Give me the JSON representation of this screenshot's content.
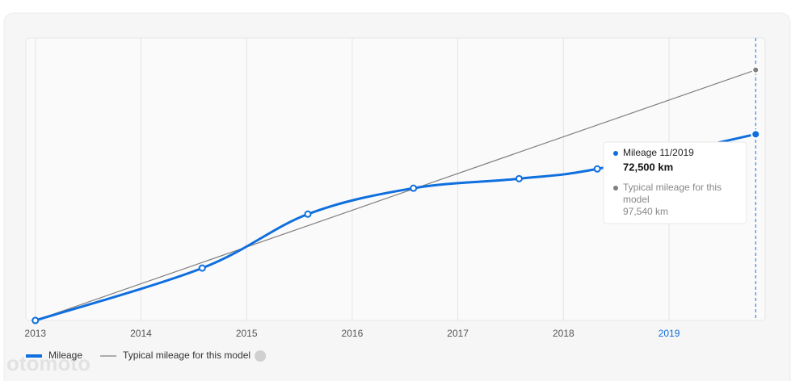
{
  "chart_data": {
    "type": "line",
    "xlim": [
      2012.91,
      2019.91
    ],
    "ylim": [
      0,
      110000
    ],
    "xticks": [
      2013,
      2014,
      2015,
      2016,
      2017,
      2018,
      2019
    ],
    "grid": true,
    "series": [
      {
        "name": "Mileage",
        "color": "#0f6fde",
        "x": [
          2013.0,
          2014.58,
          2015.58,
          2016.58,
          2017.58,
          2018.32,
          2019.82
        ],
        "values": [
          0,
          20400,
          41400,
          51500,
          55200,
          59000,
          72500
        ]
      },
      {
        "name": "Typical mileage for this model",
        "color": "#7f7f7f",
        "x": [
          2013.0,
          2019.82
        ],
        "values": [
          0,
          97540
        ]
      }
    ],
    "tooltip": {
      "title": "Mileage 11/2019",
      "value": "72,500 km",
      "typical_title": "Typical mileage for this model",
      "typical_value": "97,540 km"
    },
    "highlight_color": "#0f6fde",
    "watermark": "otomoto"
  }
}
